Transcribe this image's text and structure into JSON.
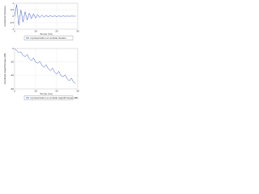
{
  "chart_data": [
    {
      "type": "line",
      "ylabel": "Amplitude (linéaire)",
      "xlabel": "Temps (ms)",
      "x": [
        0,
        1,
        2,
        3,
        4,
        5,
        6,
        7,
        8,
        9,
        10,
        11,
        12,
        13,
        14,
        15,
        16,
        17,
        18,
        19,
        20,
        21,
        22,
        23,
        24,
        25,
        26,
        27,
        28,
        29
      ],
      "series": [
        {
          "name": "représentation en échelle linéaire",
          "color": "#3b5fc9",
          "values": [
            0,
            0.9,
            -0.7,
            0.5,
            -0.45,
            0.35,
            -0.3,
            0.25,
            -0.2,
            0.18,
            -0.15,
            0.12,
            -0.1,
            0.09,
            -0.08,
            0.06,
            -0.05,
            0.05,
            -0.04,
            0.03,
            -0.03,
            0.02,
            -0.02,
            0.02,
            -0.01,
            0.01,
            -0.01,
            0.01,
            0,
            0
          ]
        }
      ],
      "xlim": [
        0,
        30
      ],
      "xticks": [
        0,
        10,
        20,
        30
      ],
      "ylim": [
        -1,
        1
      ],
      "yticks": [
        -1,
        -0.5,
        0,
        0.5,
        1
      ],
      "grid": true
    },
    {
      "type": "line",
      "ylabel": "Amplitude logarithmique (dB)",
      "xlabel": "Temps (ms)",
      "x": [
        0,
        1,
        2,
        3,
        4,
        5,
        6,
        7,
        8,
        9,
        10,
        11,
        12,
        13,
        14,
        15,
        16,
        17,
        18,
        19,
        20,
        21,
        22,
        23,
        24,
        25,
        26,
        27,
        28,
        29
      ],
      "series": [
        {
          "name": "représentation en échelle logarithmique (dB)",
          "color": "#3b5fc9",
          "values": [
            0,
            -3,
            -6,
            -5,
            -10,
            -12,
            -9,
            -15,
            -18,
            -14,
            -20,
            -22,
            -19,
            -25,
            -28,
            -24,
            -30,
            -33,
            -29,
            -35,
            -38,
            -34,
            -40,
            -42,
            -39,
            -45,
            -48,
            -44,
            -50,
            -52
          ]
        }
      ],
      "xlim": [
        0,
        30
      ],
      "xticks": [
        0,
        10,
        20,
        30
      ],
      "ylim": [
        -60,
        0
      ],
      "yticks": [
        -60,
        -40,
        -20,
        0
      ],
      "grid": true
    }
  ]
}
